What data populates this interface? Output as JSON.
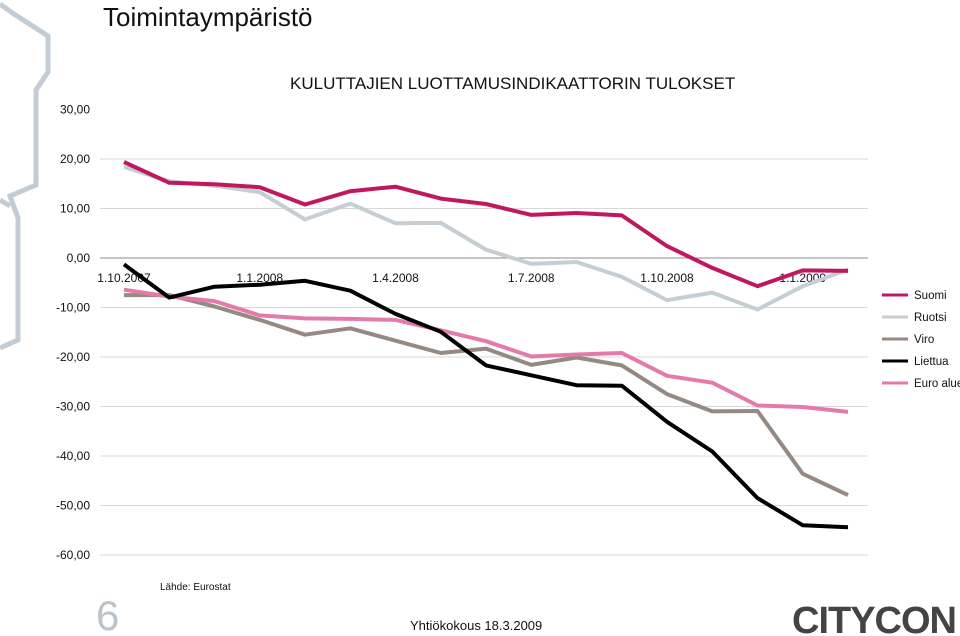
{
  "slide": {
    "title": "Toimintaympäristö",
    "source": "Lähde: Eurostat",
    "page_number": "6",
    "footer": "Yhtiökokous 18.3.2009",
    "logo": "CITYCON"
  },
  "colors": {
    "Suomi": "#c0185f",
    "Ruotsi": "#c4ced3",
    "Viro": "#948a83",
    "Liettua": "#000000",
    "Euro alue": "#e47aac",
    "decoration": "#c3ccd4"
  },
  "chart_data": {
    "type": "line",
    "title": "KULUTTAJIEN LUOTTAMUSINDIKAATTORIN TULOKSET",
    "xlabel": "",
    "ylabel": "",
    "ylim": [
      -60,
      30
    ],
    "yticks": [
      "30,00",
      "20,00",
      "10,00",
      "0,00",
      "-10,00",
      "-20,00",
      "-30,00",
      "-40,00",
      "-50,00",
      "-60,00"
    ],
    "yticks_values": [
      30,
      20,
      10,
      0,
      -10,
      -20,
      -30,
      -40,
      -50,
      -60
    ],
    "x": [
      "1.10.2007",
      "1.11.2007",
      "1.12.2007",
      "1.1.2008",
      "1.2.2008",
      "1.3.2008",
      "1.4.2008",
      "1.5.2008",
      "1.6.2008",
      "1.7.2008",
      "1.8.2008",
      "1.9.2008",
      "1.10.2008",
      "1.11.2008",
      "1.12.2008",
      "1.1.2009",
      "1.2.2009"
    ],
    "xtick_labels": [
      "1.10.2007",
      "1.1.2008",
      "1.4.2008",
      "1.7.2008",
      "1.10.2008",
      "1.1.2009"
    ],
    "xtick_indices": [
      0,
      3,
      6,
      9,
      12,
      15
    ],
    "grid": true,
    "legend_position": "right",
    "series": [
      {
        "name": "Suomi",
        "values": [
          19.4,
          15.2,
          14.9,
          14.3,
          10.8,
          13.5,
          14.4,
          12.0,
          10.9,
          8.7,
          9.1,
          8.6,
          2.4,
          -2.0,
          -5.7,
          -2.5,
          -2.6
        ]
      },
      {
        "name": "Ruotsi",
        "values": [
          18.4,
          15.5,
          14.6,
          13.3,
          7.8,
          11.0,
          7.0,
          7.1,
          1.7,
          -1.2,
          -0.8,
          -3.8,
          -8.5,
          -7.0,
          -10.4,
          -5.7,
          -2.3
        ]
      },
      {
        "name": "Viro",
        "values": [
          -7.5,
          -7.5,
          -9.8,
          -12.5,
          -15.5,
          -14.2,
          -16.7,
          -19.2,
          -18.3,
          -21.6,
          -20.1,
          -21.7,
          -27.5,
          -31.0,
          -30.9,
          -43.6,
          -47.9
        ]
      },
      {
        "name": "Liettua",
        "values": [
          -1.3,
          -8.0,
          -5.8,
          -5.4,
          -4.6,
          -6.6,
          -11.3,
          -14.9,
          -21.7,
          -23.7,
          -25.7,
          -25.8,
          -33.1,
          -39.1,
          -48.5,
          -54.0,
          -54.4
        ]
      },
      {
        "name": "Euro alue",
        "values": [
          -6.4,
          -7.8,
          -8.7,
          -11.6,
          -12.2,
          -12.3,
          -12.5,
          -14.6,
          -16.8,
          -19.9,
          -19.5,
          -19.2,
          -23.8,
          -25.2,
          -29.8,
          -30.1,
          -31.1
        ]
      }
    ]
  }
}
